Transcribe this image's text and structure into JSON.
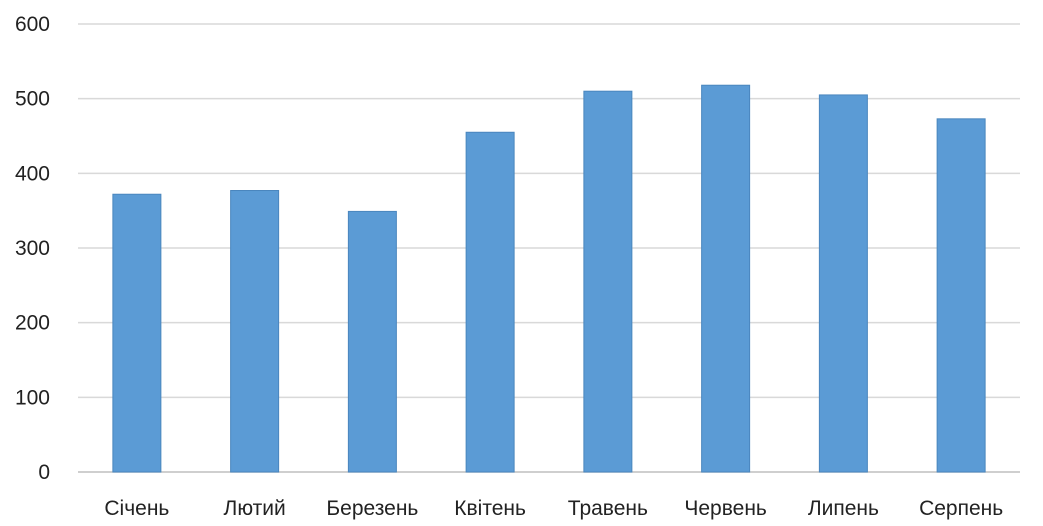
{
  "chart_data": {
    "type": "bar",
    "title": "",
    "xlabel": "",
    "ylabel": "",
    "categories": [
      "Січень",
      "Лютий",
      "Березень",
      "Квітень",
      "Травень",
      "Червень",
      "Липень",
      "Серпень"
    ],
    "values": [
      372,
      377,
      349,
      455,
      510,
      518,
      505,
      473
    ],
    "ylim": [
      0,
      600
    ],
    "yticks": [
      0,
      100,
      200,
      300,
      400,
      500,
      600
    ],
    "grid": true,
    "legend": "none",
    "colors": {
      "bar_fill": "#5b9bd5",
      "bar_stroke": "#4a86be",
      "gridline": "#d9d9d9",
      "text": "#222222"
    }
  }
}
